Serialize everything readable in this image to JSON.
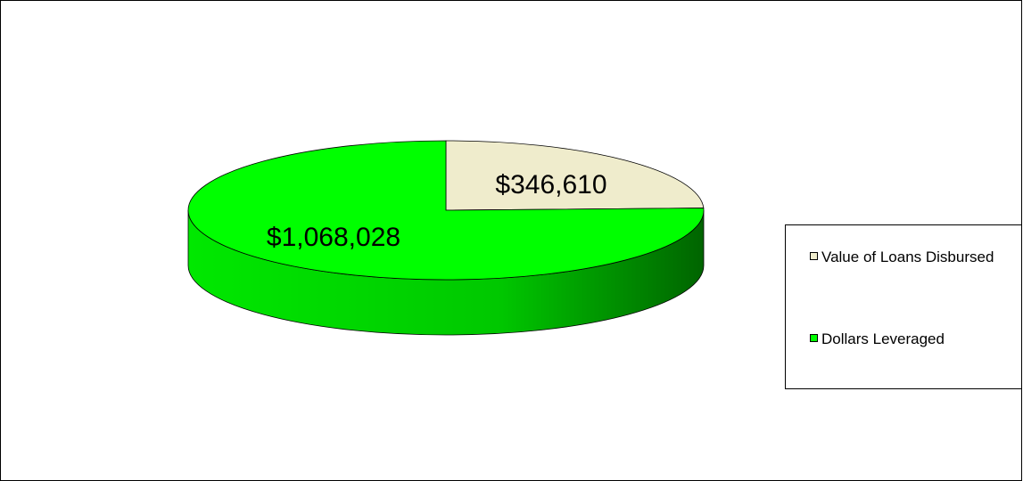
{
  "chart_data": {
    "type": "pie",
    "style": "3d",
    "title": "",
    "slices": [
      {
        "label": "Value of Loans Disbursed",
        "value": 346610,
        "display": "$346,610",
        "color": "#efeccc"
      },
      {
        "label": "Dollars Leveraged",
        "value": 1068028,
        "display": "$1,068,028",
        "color": "#00ff00"
      }
    ],
    "legend_position": "right"
  }
}
